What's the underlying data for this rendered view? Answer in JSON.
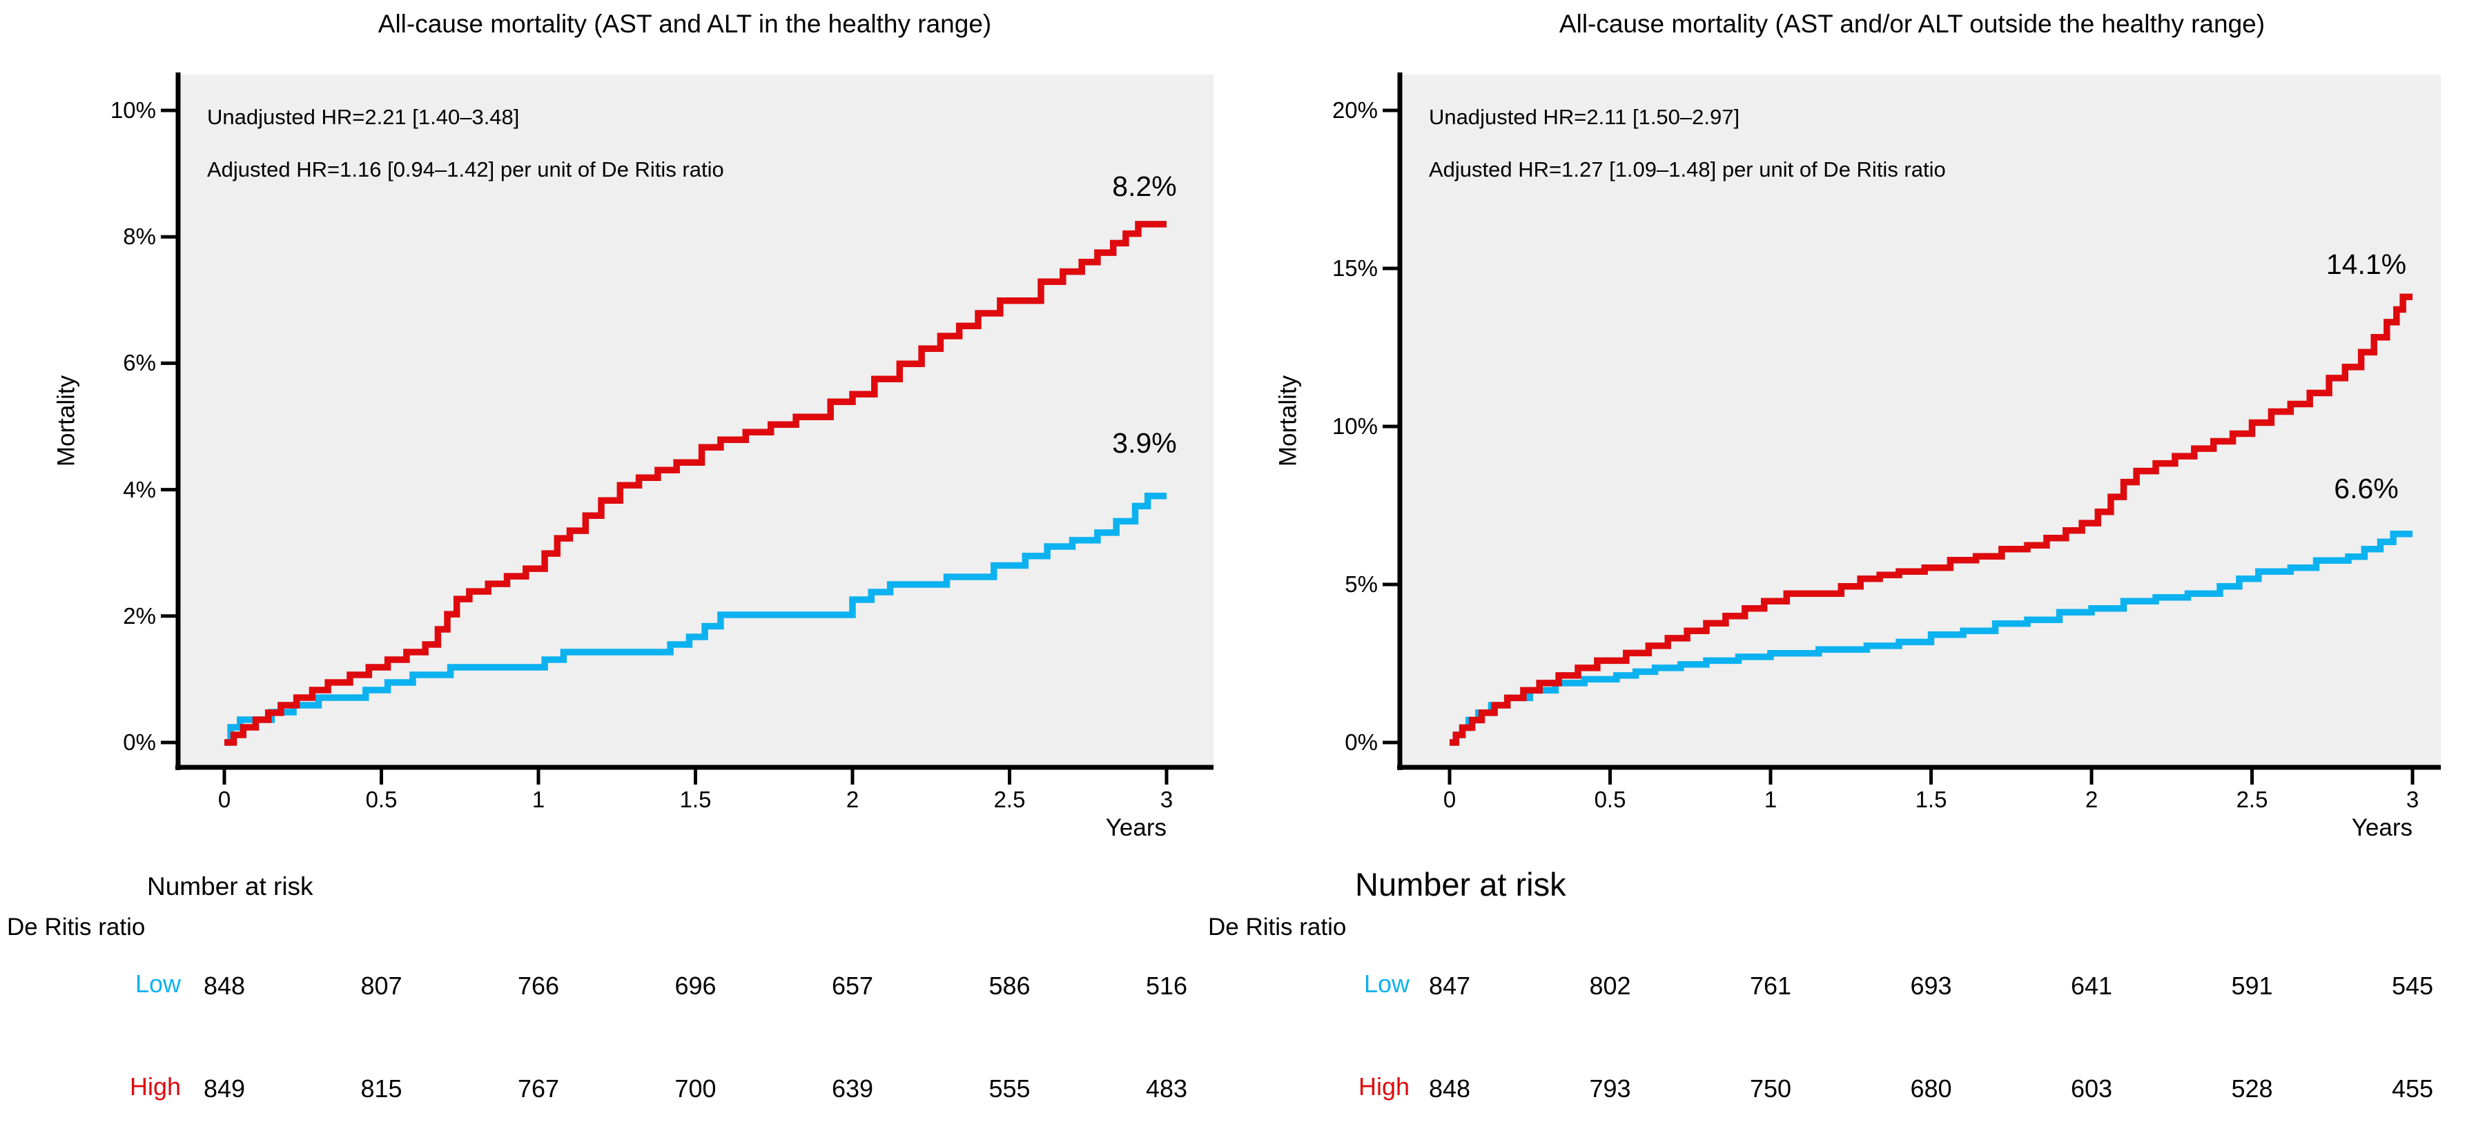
{
  "colors": {
    "high": "#DE0A0E",
    "low": "#0CB2F0",
    "panel_bg": "#EFEFEF",
    "axis": "#000000",
    "text": "#000000"
  },
  "chart_data": [
    {
      "type": "line",
      "subtype": "kaplan_meier_step",
      "title": "All-cause mortality (AST and ALT in the healthy range)",
      "annotations": [
        "Unadjusted HR=2.21 [1.40–3.48]",
        "Adjusted HR=1.16 [0.94–1.42] per unit of De Ritis ratio"
      ],
      "xlabel": "Years",
      "ylabel": "Mortality",
      "xlim": [
        0,
        3
      ],
      "ylim_pct": [
        0,
        10
      ],
      "xticks": [
        "0",
        "0.5",
        "1",
        "1.5",
        "2",
        "2.5",
        "3"
      ],
      "yticks": [
        "0%",
        "2%",
        "4%",
        "6%",
        "8%",
        "10%"
      ],
      "ytick_values": [
        0,
        2,
        4,
        6,
        8,
        10
      ],
      "grid": false,
      "legend": "none",
      "series": [
        {
          "name": "Low De Ritis ratio",
          "color_key": "low",
          "end_label": "3.9%",
          "points": [
            [
              0,
              0
            ],
            [
              0.02,
              0.24
            ],
            [
              0.05,
              0.36
            ],
            [
              0.15,
              0.48
            ],
            [
              0.22,
              0.59
            ],
            [
              0.3,
              0.71
            ],
            [
              0.45,
              0.83
            ],
            [
              0.52,
              0.95
            ],
            [
              0.6,
              1.07
            ],
            [
              0.72,
              1.19
            ],
            [
              1.02,
              1.31
            ],
            [
              1.08,
              1.43
            ],
            [
              1.42,
              1.55
            ],
            [
              1.48,
              1.67
            ],
            [
              1.53,
              1.84
            ],
            [
              1.58,
              2.02
            ],
            [
              2.0,
              2.26
            ],
            [
              2.06,
              2.38
            ],
            [
              2.12,
              2.5
            ],
            [
              2.3,
              2.62
            ],
            [
              2.45,
              2.8
            ],
            [
              2.55,
              2.95
            ],
            [
              2.62,
              3.1
            ],
            [
              2.7,
              3.2
            ],
            [
              2.78,
              3.32
            ],
            [
              2.84,
              3.5
            ],
            [
              2.9,
              3.74
            ],
            [
              2.94,
              3.9
            ],
            [
              3,
              3.9
            ]
          ]
        },
        {
          "name": "High De Ritis ratio",
          "color_key": "high",
          "end_label": "8.2%",
          "points": [
            [
              0,
              0
            ],
            [
              0.03,
              0.12
            ],
            [
              0.06,
              0.24
            ],
            [
              0.1,
              0.36
            ],
            [
              0.14,
              0.47
            ],
            [
              0.18,
              0.59
            ],
            [
              0.23,
              0.71
            ],
            [
              0.28,
              0.83
            ],
            [
              0.33,
              0.95
            ],
            [
              0.4,
              1.07
            ],
            [
              0.46,
              1.19
            ],
            [
              0.52,
              1.31
            ],
            [
              0.58,
              1.43
            ],
            [
              0.64,
              1.55
            ],
            [
              0.68,
              1.79
            ],
            [
              0.71,
              2.03
            ],
            [
              0.74,
              2.27
            ],
            [
              0.78,
              2.39
            ],
            [
              0.84,
              2.51
            ],
            [
              0.9,
              2.63
            ],
            [
              0.96,
              2.75
            ],
            [
              1.02,
              2.99
            ],
            [
              1.06,
              3.23
            ],
            [
              1.1,
              3.35
            ],
            [
              1.15,
              3.59
            ],
            [
              1.2,
              3.83
            ],
            [
              1.26,
              4.07
            ],
            [
              1.32,
              4.19
            ],
            [
              1.38,
              4.31
            ],
            [
              1.44,
              4.43
            ],
            [
              1.52,
              4.67
            ],
            [
              1.58,
              4.79
            ],
            [
              1.66,
              4.91
            ],
            [
              1.74,
              5.03
            ],
            [
              1.82,
              5.15
            ],
            [
              1.93,
              5.39
            ],
            [
              2.0,
              5.51
            ],
            [
              2.07,
              5.75
            ],
            [
              2.15,
              5.99
            ],
            [
              2.22,
              6.23
            ],
            [
              2.28,
              6.43
            ],
            [
              2.34,
              6.59
            ],
            [
              2.4,
              6.79
            ],
            [
              2.47,
              6.99
            ],
            [
              2.6,
              7.29
            ],
            [
              2.67,
              7.45
            ],
            [
              2.73,
              7.6
            ],
            [
              2.78,
              7.75
            ],
            [
              2.83,
              7.9
            ],
            [
              2.87,
              8.05
            ],
            [
              2.91,
              8.2
            ],
            [
              3,
              8.2
            ]
          ]
        }
      ],
      "number_at_risk": {
        "header": "Number at risk",
        "group_label": "De Ritis ratio",
        "times": [
          0,
          0.5,
          1,
          1.5,
          2,
          2.5,
          3
        ],
        "rows": [
          {
            "label": "Low",
            "color_key": "low",
            "values": [
              "848",
              "807",
              "766",
              "696",
              "657",
              "586",
              "516"
            ]
          },
          {
            "label": "High",
            "color_key": "high",
            "values": [
              "849",
              "815",
              "767",
              "700",
              "639",
              "555",
              "483"
            ]
          }
        ]
      }
    },
    {
      "type": "line",
      "subtype": "kaplan_meier_step",
      "title": "All-cause mortality (AST and/or ALT outside the healthy range)",
      "annotations": [
        "Unadjusted HR=2.11 [1.50–2.97]",
        "Adjusted HR=1.27 [1.09–1.48] per unit of De Ritis ratio"
      ],
      "xlabel": "Years",
      "ylabel": "Mortality",
      "xlim": [
        0,
        3
      ],
      "ylim_pct": [
        0,
        20
      ],
      "xticks": [
        "0",
        "0.5",
        "1",
        "1.5",
        "2",
        "2.5",
        "3"
      ],
      "yticks": [
        "0%",
        "5%",
        "10%",
        "15%",
        "20%"
      ],
      "ytick_values": [
        0,
        5,
        10,
        15,
        20
      ],
      "grid": false,
      "legend": "none",
      "series": [
        {
          "name": "Low De Ritis ratio",
          "color_key": "low",
          "end_label": "6.6%",
          "points": [
            [
              0,
              0
            ],
            [
              0.02,
              0.24
            ],
            [
              0.04,
              0.47
            ],
            [
              0.06,
              0.71
            ],
            [
              0.09,
              0.94
            ],
            [
              0.13,
              1.18
            ],
            [
              0.18,
              1.41
            ],
            [
              0.25,
              1.65
            ],
            [
              0.33,
              1.88
            ],
            [
              0.42,
              2.0
            ],
            [
              0.52,
              2.12
            ],
            [
              0.58,
              2.24
            ],
            [
              0.64,
              2.36
            ],
            [
              0.72,
              2.47
            ],
            [
              0.8,
              2.59
            ],
            [
              0.9,
              2.71
            ],
            [
              1.0,
              2.82
            ],
            [
              1.15,
              2.94
            ],
            [
              1.3,
              3.06
            ],
            [
              1.4,
              3.18
            ],
            [
              1.5,
              3.41
            ],
            [
              1.6,
              3.53
            ],
            [
              1.7,
              3.76
            ],
            [
              1.8,
              3.88
            ],
            [
              1.9,
              4.12
            ],
            [
              2.0,
              4.24
            ],
            [
              2.1,
              4.47
            ],
            [
              2.2,
              4.59
            ],
            [
              2.3,
              4.71
            ],
            [
              2.4,
              4.94
            ],
            [
              2.46,
              5.18
            ],
            [
              2.52,
              5.41
            ],
            [
              2.62,
              5.53
            ],
            [
              2.7,
              5.76
            ],
            [
              2.8,
              5.88
            ],
            [
              2.85,
              6.12
            ],
            [
              2.9,
              6.35
            ],
            [
              2.94,
              6.6
            ],
            [
              3,
              6.6
            ]
          ]
        },
        {
          "name": "High De Ritis ratio",
          "color_key": "high",
          "end_label": "14.1%",
          "points": [
            [
              0,
              0
            ],
            [
              0.02,
              0.24
            ],
            [
              0.04,
              0.47
            ],
            [
              0.07,
              0.71
            ],
            [
              0.1,
              0.94
            ],
            [
              0.14,
              1.18
            ],
            [
              0.18,
              1.41
            ],
            [
              0.23,
              1.65
            ],
            [
              0.28,
              1.88
            ],
            [
              0.34,
              2.12
            ],
            [
              0.4,
              2.36
            ],
            [
              0.46,
              2.59
            ],
            [
              0.55,
              2.83
            ],
            [
              0.62,
              3.06
            ],
            [
              0.68,
              3.3
            ],
            [
              0.74,
              3.53
            ],
            [
              0.8,
              3.77
            ],
            [
              0.86,
              4.0
            ],
            [
              0.92,
              4.24
            ],
            [
              0.98,
              4.47
            ],
            [
              1.05,
              4.71
            ],
            [
              1.22,
              4.94
            ],
            [
              1.28,
              5.18
            ],
            [
              1.34,
              5.3
            ],
            [
              1.4,
              5.41
            ],
            [
              1.48,
              5.53
            ],
            [
              1.56,
              5.77
            ],
            [
              1.64,
              5.89
            ],
            [
              1.72,
              6.12
            ],
            [
              1.8,
              6.24
            ],
            [
              1.86,
              6.47
            ],
            [
              1.92,
              6.71
            ],
            [
              1.97,
              6.94
            ],
            [
              2.02,
              7.3
            ],
            [
              2.06,
              7.77
            ],
            [
              2.1,
              8.24
            ],
            [
              2.14,
              8.59
            ],
            [
              2.2,
              8.83
            ],
            [
              2.26,
              9.06
            ],
            [
              2.32,
              9.3
            ],
            [
              2.38,
              9.53
            ],
            [
              2.44,
              9.77
            ],
            [
              2.5,
              10.12
            ],
            [
              2.56,
              10.47
            ],
            [
              2.62,
              10.71
            ],
            [
              2.68,
              11.06
            ],
            [
              2.74,
              11.53
            ],
            [
              2.79,
              11.88
            ],
            [
              2.84,
              12.35
            ],
            [
              2.88,
              12.82
            ],
            [
              2.92,
              13.3
            ],
            [
              2.95,
              13.7
            ],
            [
              2.97,
              14.1
            ],
            [
              3,
              14.1
            ]
          ]
        }
      ],
      "number_at_risk": {
        "header": "Number at risk",
        "group_label": "De Ritis ratio",
        "times": [
          0,
          0.5,
          1,
          1.5,
          2,
          2.5,
          3
        ],
        "rows": [
          {
            "label": "Low",
            "color_key": "low",
            "values": [
              "847",
              "802",
              "761",
              "693",
              "641",
              "591",
              "545"
            ]
          },
          {
            "label": "High",
            "color_key": "high",
            "values": [
              "848",
              "793",
              "750",
              "680",
              "603",
              "528",
              "455"
            ]
          }
        ]
      }
    }
  ]
}
